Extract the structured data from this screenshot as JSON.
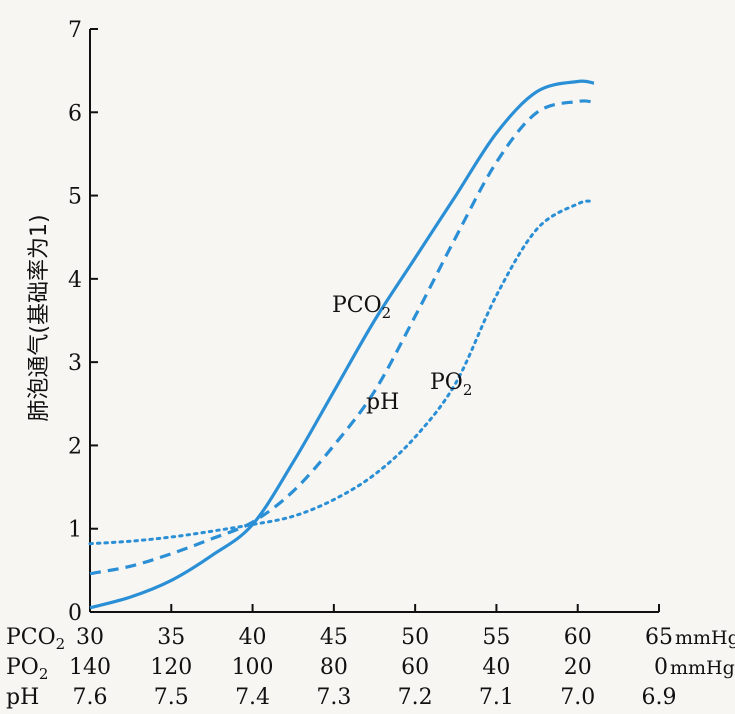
{
  "chart_data": {
    "type": "line",
    "ylabel": "肺泡通气(基础率为1)",
    "ylim": [
      0,
      7
    ],
    "y_ticks": [
      "0",
      "1",
      "2",
      "3",
      "4",
      "5",
      "6",
      "7"
    ],
    "x_axes": [
      {
        "name": "PCO",
        "sub": "2",
        "ticks": [
          "30",
          "35",
          "40",
          "45",
          "50",
          "55",
          "60",
          "65"
        ],
        "unit": "mmHg"
      },
      {
        "name": "PO",
        "sub": "2",
        "ticks": [
          "140",
          "120",
          "100",
          "80",
          "60",
          "40",
          "20",
          "0"
        ],
        "unit": "mmHg"
      },
      {
        "name": "pH",
        "sub": "",
        "ticks": [
          "7.6",
          "7.5",
          "7.4",
          "7.3",
          "7.2",
          "7.1",
          "7.0",
          "6.9"
        ],
        "unit": ""
      }
    ],
    "x": [
      30,
      32.5,
      35,
      37.5,
      40,
      42.5,
      45,
      47.5,
      50,
      52.5,
      55,
      57.5,
      60,
      61
    ],
    "series": [
      {
        "name": "PCO",
        "name_sub": "2",
        "style": "solid",
        "values": [
          0.05,
          0.18,
          0.38,
          0.68,
          1.05,
          1.8,
          2.65,
          3.5,
          4.25,
          5.0,
          5.75,
          6.25,
          6.37,
          6.35
        ]
      },
      {
        "name": "pH",
        "name_sub": "",
        "style": "dashed",
        "values": [
          0.46,
          0.55,
          0.7,
          0.88,
          1.08,
          1.45,
          2.0,
          2.65,
          3.55,
          4.5,
          5.4,
          6.0,
          6.13,
          6.12
        ]
      },
      {
        "name": "PO",
        "name_sub": "2",
        "style": "dotted",
        "values": [
          0.82,
          0.85,
          0.9,
          0.97,
          1.05,
          1.15,
          1.35,
          1.65,
          2.1,
          2.75,
          3.8,
          4.6,
          4.9,
          4.93
        ]
      }
    ],
    "color": "#2b8fd6"
  }
}
